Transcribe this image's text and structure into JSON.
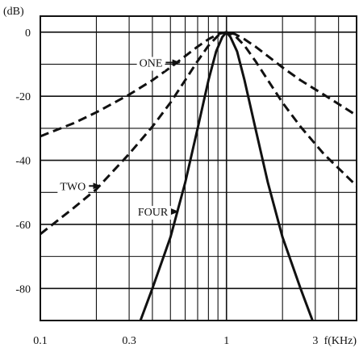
{
  "chart_data": {
    "type": "line",
    "xscale": "log",
    "xlim": [
      0.1,
      5
    ],
    "ylim": [
      -90,
      5
    ],
    "grid": true,
    "ylabel": "(dB)",
    "xlabel": "f(KHz)",
    "x_ticks": [
      {
        "value": 0.1,
        "label": "0.1"
      },
      {
        "value": 0.3,
        "label": "0.3"
      },
      {
        "value": 1,
        "label": "1"
      },
      {
        "value": 3,
        "label": "3"
      }
    ],
    "y_ticks": [
      {
        "value": 0,
        "label": "0"
      },
      {
        "value": -20,
        "label": "-20"
      },
      {
        "value": -40,
        "label": "-40"
      },
      {
        "value": -60,
        "label": "-60"
      },
      {
        "value": -80,
        "label": "-80"
      }
    ],
    "series": [
      {
        "name": "ONE",
        "style": "dashed",
        "points": [
          [
            0.1,
            -32.5
          ],
          [
            0.15,
            -28.5
          ],
          [
            0.2,
            -25
          ],
          [
            0.3,
            -19.5
          ],
          [
            0.4,
            -15
          ],
          [
            0.5,
            -11
          ],
          [
            0.6,
            -7.5
          ],
          [
            0.7,
            -4.5
          ],
          [
            0.8,
            -2.2
          ],
          [
            0.9,
            -0.6
          ],
          [
            1.0,
            0
          ],
          [
            1.11,
            -0.6
          ],
          [
            1.25,
            -2.2
          ],
          [
            1.43,
            -4.5
          ],
          [
            1.67,
            -7.5
          ],
          [
            2.0,
            -11
          ],
          [
            2.5,
            -15
          ],
          [
            3.33,
            -19.5
          ],
          [
            5.0,
            -26
          ]
        ]
      },
      {
        "name": "TWO",
        "style": "dashed",
        "points": [
          [
            0.1,
            -63
          ],
          [
            0.15,
            -55
          ],
          [
            0.2,
            -49
          ],
          [
            0.3,
            -38
          ],
          [
            0.4,
            -29.5
          ],
          [
            0.5,
            -22
          ],
          [
            0.6,
            -15
          ],
          [
            0.7,
            -9
          ],
          [
            0.8,
            -4.2
          ],
          [
            0.9,
            -1.1
          ],
          [
            1.0,
            0
          ],
          [
            1.11,
            -1.1
          ],
          [
            1.25,
            -4.2
          ],
          [
            1.43,
            -9
          ],
          [
            1.67,
            -15
          ],
          [
            2.0,
            -22
          ],
          [
            2.5,
            -29.5
          ],
          [
            3.33,
            -38
          ],
          [
            5.0,
            -48
          ]
        ]
      },
      {
        "name": "FOUR",
        "style": "solid",
        "points": [
          [
            0.345,
            -90
          ],
          [
            0.4,
            -80
          ],
          [
            0.5,
            -64
          ],
          [
            0.6,
            -47
          ],
          [
            0.7,
            -30
          ],
          [
            0.8,
            -15
          ],
          [
            0.88,
            -6
          ],
          [
            0.95,
            -1.5
          ],
          [
            1.0,
            0
          ],
          [
            1.05,
            -1.5
          ],
          [
            1.14,
            -6
          ],
          [
            1.25,
            -15
          ],
          [
            1.43,
            -30
          ],
          [
            1.67,
            -47
          ],
          [
            2.0,
            -64
          ],
          [
            2.5,
            -80
          ],
          [
            2.9,
            -90
          ]
        ]
      }
    ],
    "annotations": [
      {
        "text": "ONE",
        "target_series": "ONE",
        "at": [
          0.56,
          -9.5
        ]
      },
      {
        "text": "TWO",
        "target_series": "TWO",
        "at": [
          0.21,
          -48
        ]
      },
      {
        "text": "FOUR",
        "target_series": "FOUR",
        "at": [
          0.55,
          -56
        ]
      }
    ]
  }
}
